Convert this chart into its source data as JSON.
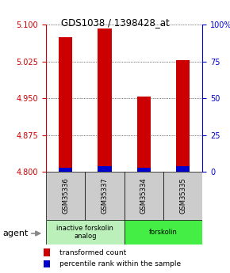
{
  "title": "GDS1038 / 1398428_at",
  "samples": [
    "GSM35336",
    "GSM35337",
    "GSM35334",
    "GSM35335"
  ],
  "red_values": [
    5.075,
    5.092,
    4.953,
    5.027
  ],
  "blue_percentile": [
    3.0,
    4.0,
    3.0,
    4.0
  ],
  "y_min": 4.8,
  "y_max": 5.1,
  "y_ticks": [
    4.8,
    4.875,
    4.95,
    5.025,
    5.1
  ],
  "y2_ticks": [
    0,
    25,
    50,
    75,
    100
  ],
  "y2_labels": [
    "0",
    "25",
    "50",
    "75",
    "100%"
  ],
  "bar_width": 0.35,
  "groups": [
    {
      "label": "inactive forskolin\nanalog",
      "indices": [
        0,
        1
      ],
      "color": "#bbf0bb"
    },
    {
      "label": "forskolin",
      "indices": [
        2,
        3
      ],
      "color": "#44ee44"
    }
  ],
  "agent_label": "agent",
  "legend_red": "transformed count",
  "legend_blue": "percentile rank within the sample",
  "red_color": "#cc0000",
  "blue_color": "#0000cc",
  "left_axis_color": "#cc0000",
  "right_axis_color": "#0000cc",
  "bg_color": "#ffffff",
  "plot_bg": "#ffffff",
  "grid_color": "#000000",
  "sample_bg": "#cccccc"
}
